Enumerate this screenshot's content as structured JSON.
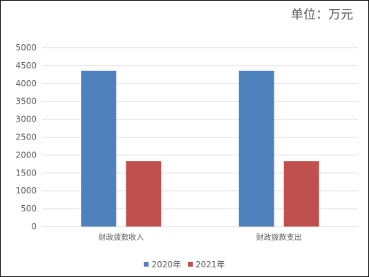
{
  "chart_data": {
    "type": "bar",
    "unit_label": "单位：万元",
    "categories": [
      "财政拨款收入",
      "财政拨款支出"
    ],
    "series": [
      {
        "name": "2020年",
        "color": "#4f81bd",
        "values": [
          4350,
          4350
        ]
      },
      {
        "name": "2021年",
        "color": "#c0504d",
        "values": [
          1830,
          1830
        ]
      }
    ],
    "ylim": [
      0,
      5000
    ],
    "yticks": [
      0,
      500,
      1000,
      1500,
      2000,
      2500,
      3000,
      3500,
      4000,
      4500,
      5000
    ],
    "grid": true,
    "legend_position": "bottom"
  }
}
